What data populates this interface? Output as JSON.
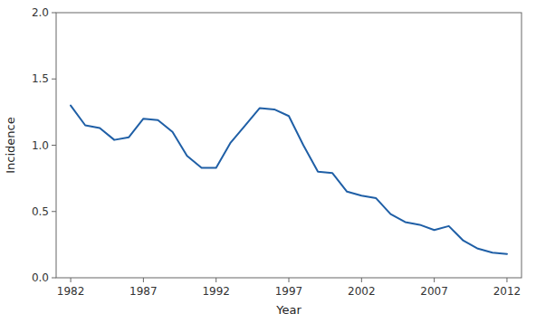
{
  "chart_data": {
    "type": "line",
    "x": [
      1982,
      1983,
      1984,
      1985,
      1986,
      1987,
      1988,
      1989,
      1990,
      1991,
      1992,
      1993,
      1994,
      1995,
      1996,
      1997,
      1998,
      1999,
      2000,
      2001,
      2002,
      2003,
      2004,
      2005,
      2006,
      2007,
      2008,
      2009,
      2010,
      2011,
      2012
    ],
    "values": [
      1.3,
      1.15,
      1.13,
      1.04,
      1.06,
      1.2,
      1.19,
      1.1,
      0.92,
      0.83,
      0.83,
      1.02,
      1.15,
      1.28,
      1.27,
      1.22,
      1.0,
      0.8,
      0.79,
      0.65,
      0.62,
      0.6,
      0.48,
      0.42,
      0.4,
      0.36,
      0.39,
      0.28,
      0.22,
      0.19,
      0.18
    ],
    "color": "#1f5fa6",
    "xlabel": "Year",
    "ylabel": "Incidence",
    "xlim": [
      1981,
      2013
    ],
    "ylim": [
      0.0,
      2.0
    ],
    "xticks": [
      1982,
      1987,
      1992,
      1997,
      2002,
      2007,
      2012
    ],
    "yticks": [
      {
        "value": 0.0,
        "label": "0.0"
      },
      0.5,
      {
        "value": 1.0,
        "label": "1.0"
      },
      1.5,
      {
        "value": 2.0,
        "label": "2.0"
      }
    ],
    "grid": false
  }
}
